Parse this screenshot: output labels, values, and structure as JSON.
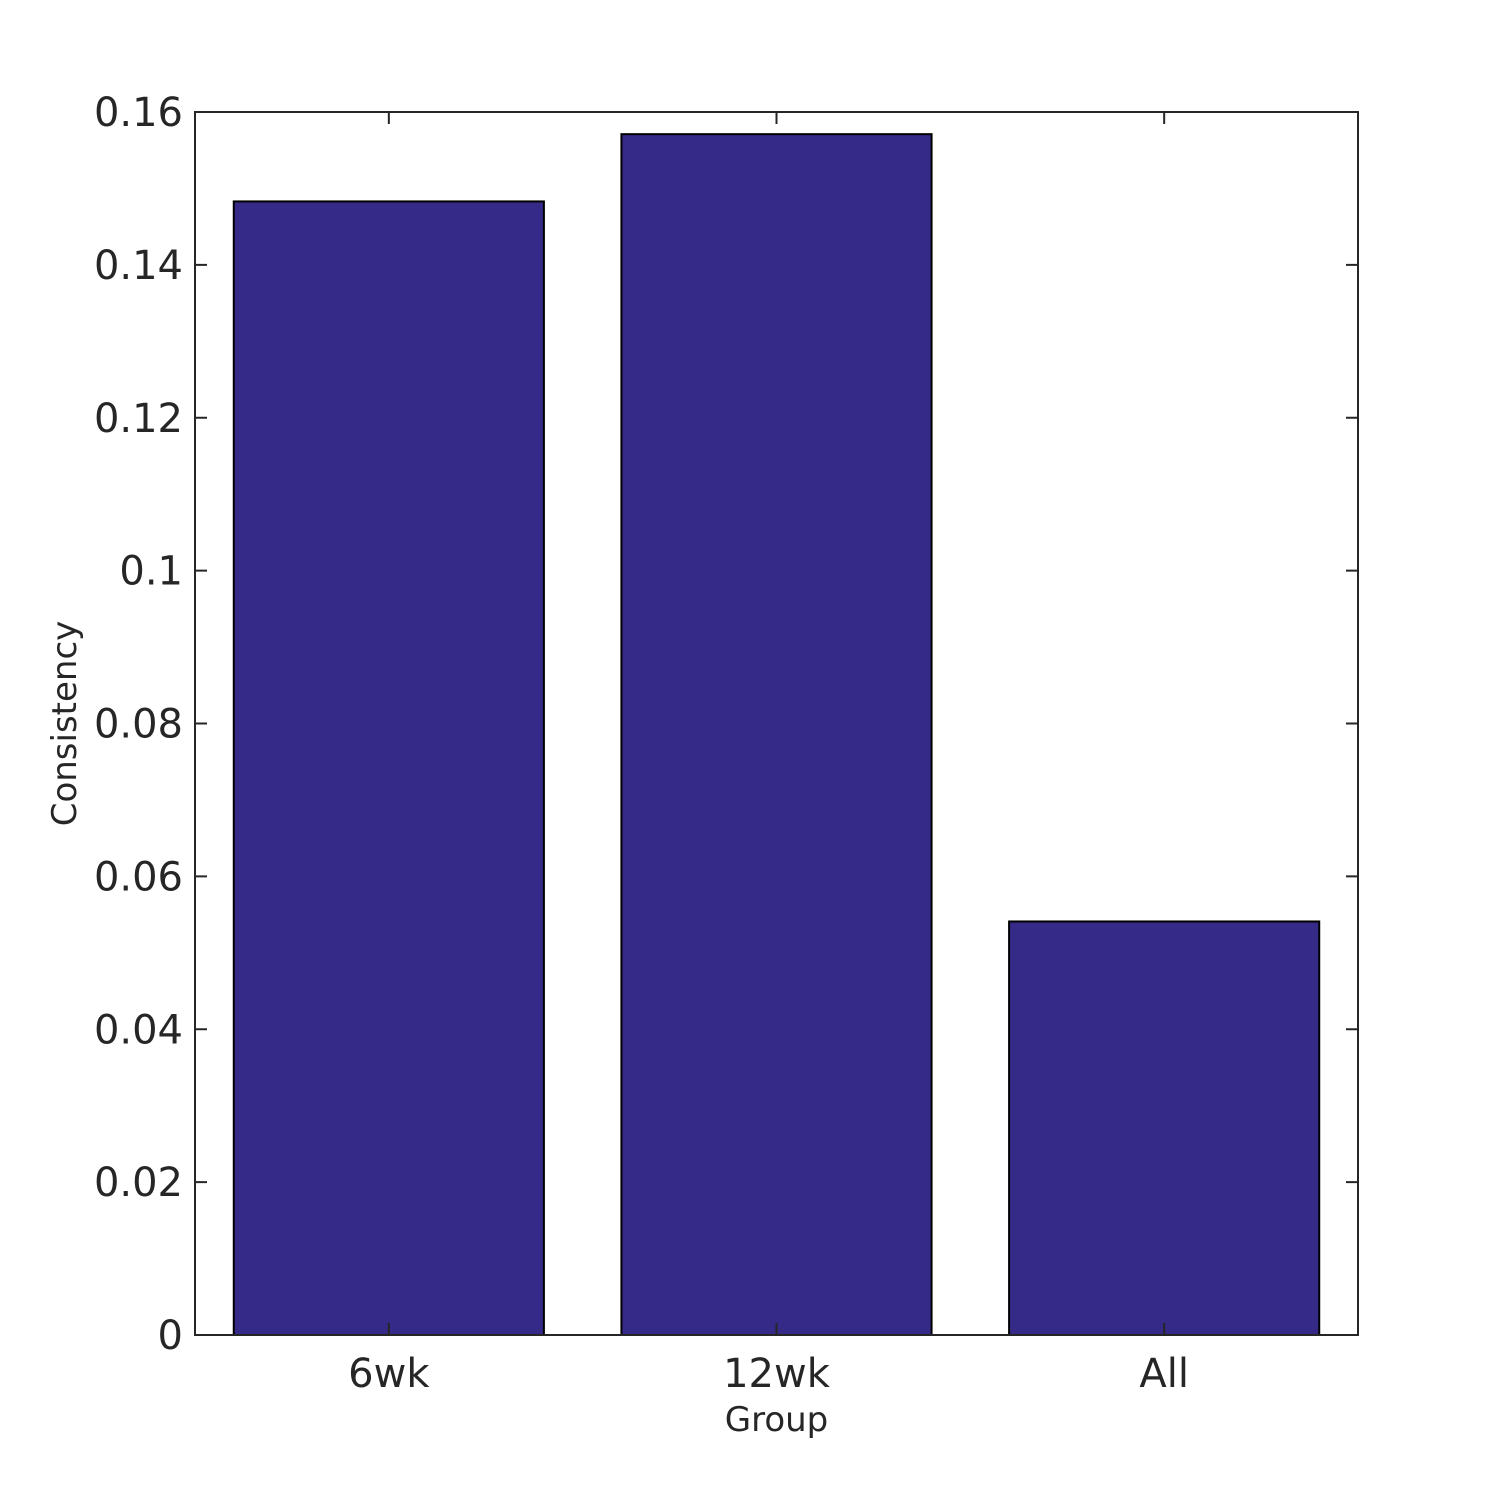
{
  "chart_data": {
    "type": "bar",
    "title": "",
    "xlabel": "Group",
    "ylabel": "Consistency",
    "categories": [
      "6wk",
      "12wk",
      "All"
    ],
    "values": [
      0.1483,
      0.1571,
      0.0541
    ],
    "ylim": [
      0,
      0.16
    ],
    "yticks": [
      0,
      0.02,
      0.04,
      0.06,
      0.08,
      0.1,
      0.12,
      0.14,
      0.16
    ],
    "ytick_labels": [
      "0",
      "0.02",
      "0.04",
      "0.06",
      "0.08",
      "0.1",
      "0.12",
      "0.14",
      "0.16"
    ],
    "grid": false,
    "legend": "none",
    "colors": {
      "bar": "#352a87",
      "bar_edge": "#000000",
      "axis": "#262626"
    }
  }
}
